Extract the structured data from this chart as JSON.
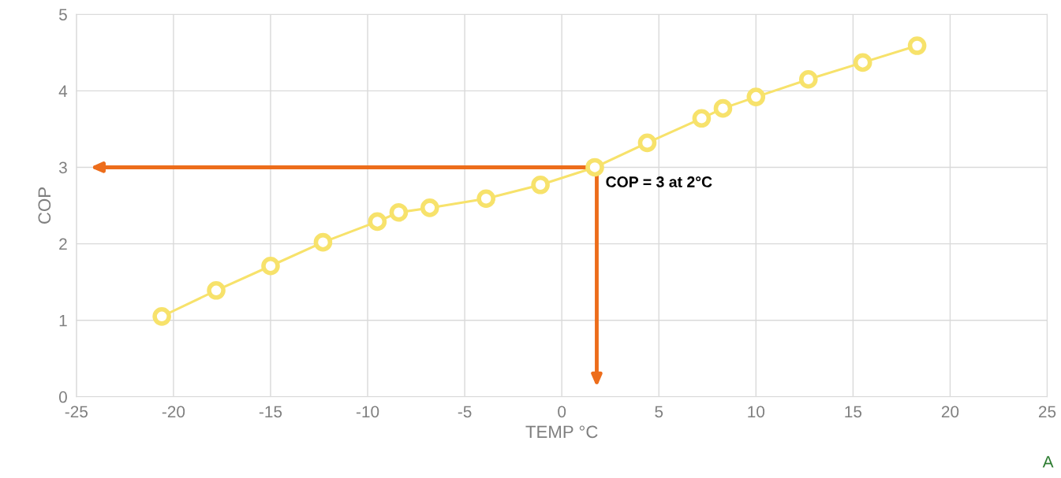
{
  "chart_data": {
    "type": "line",
    "xlabel": "TEMP °C",
    "ylabel": "COP",
    "x": [
      -20.6,
      -17.8,
      -15.0,
      -12.3,
      -9.5,
      -8.4,
      -6.8,
      -3.9,
      -1.1,
      1.7,
      4.4,
      7.2,
      8.3,
      10.0,
      12.7,
      15.5,
      18.3
    ],
    "series": [
      {
        "color": "#f7e26b",
        "values": [
          1.05,
          1.39,
          1.71,
          2.02,
          2.29,
          2.41,
          2.47,
          2.59,
          2.77,
          3.0,
          3.32,
          3.64,
          3.77,
          3.92,
          4.15,
          4.37,
          4.59
        ]
      }
    ],
    "xlim": [
      -25,
      25
    ],
    "xticks": [
      -25,
      -20,
      -15,
      -10,
      -5,
      0,
      5,
      10,
      15,
      20,
      25
    ],
    "ylim": [
      0,
      5
    ],
    "yticks": [
      0,
      1,
      2,
      3,
      4,
      5
    ],
    "grid": true,
    "marker": "circle",
    "line_style": "solid",
    "annotations": [
      {
        "text": "COP = 3 at 2°C",
        "x": 1.8,
        "y": 3
      },
      "A"
    ]
  }
}
